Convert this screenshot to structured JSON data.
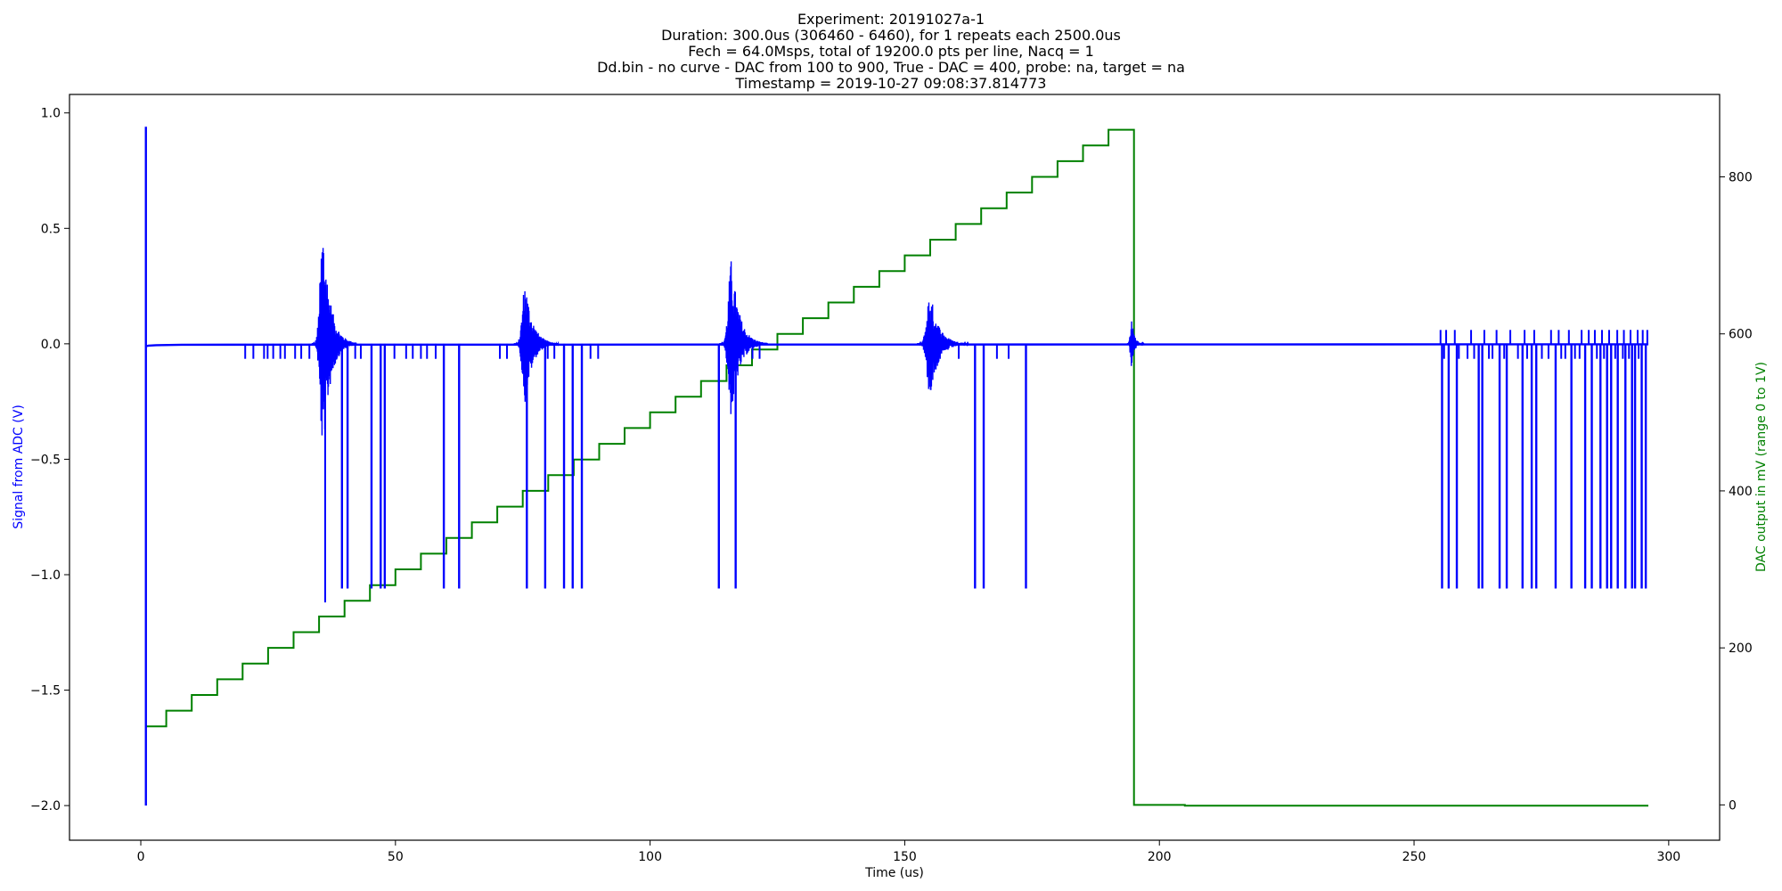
{
  "chart_data": {
    "type": "line",
    "title_lines": [
      "Experiment: 20191027a-1",
      "Duration: 300.0us (306460 - 6460), for 1 repeats each 2500.0us",
      "Fech = 64.0Msps, total of 19200.0 pts per line, Nacq = 1",
      "Dd.bin - no curve - DAC from 100 to 900, True - DAC = 400, probe: na, target = na",
      "Timestamp = 2019-10-27 09:08:37.814773"
    ],
    "xlabel": "Time (us)",
    "ylabel_left": "Signal from ADC (V)",
    "ylabel_right": "DAC output in mV (range 0 to 1V)",
    "xlim": [
      -14,
      310
    ],
    "ylim_left": [
      -2.15,
      1.08
    ],
    "ylim_right": [
      -45,
      905
    ],
    "x_ticks": [
      0,
      50,
      100,
      150,
      200,
      250,
      300
    ],
    "x_tick_labels": [
      "0",
      "50",
      "100",
      "150",
      "200",
      "250",
      "300"
    ],
    "y_left_ticks": [
      1.0,
      0.5,
      0.0,
      -0.5,
      -1.0,
      -1.5,
      -2.0
    ],
    "y_left_tick_labels": [
      "1.0",
      "0.5",
      "0.0",
      "−0.5",
      "−1.0",
      "−1.5",
      "−2.0"
    ],
    "y_right_ticks": [
      800,
      600,
      400,
      200,
      0
    ],
    "y_right_tick_labels": [
      "800",
      "600",
      "400",
      "200",
      "0"
    ],
    "grid": false,
    "colors": {
      "signal": "#0000ff",
      "dac": "#008000",
      "left_axis_label": "#0000ff",
      "right_axis_label": "#008000"
    },
    "series": [
      {
        "axis": "left",
        "baseline": {
          "x": [
            1.2,
            1.5,
            3,
            8,
            296
          ],
          "y": [
            -0.01,
            -0.008,
            -0.006,
            -0.004,
            -0.002
          ]
        },
        "initial_spike": {
          "x": 1.0,
          "y_max": 0.94,
          "y_min": -2.0
        },
        "echo_bursts": [
          {
            "center": 35.8,
            "half_width": 6.5,
            "peak": 0.52,
            "trough": -0.48,
            "extreme_min": -1.12
          },
          {
            "center": 75.5,
            "half_width": 6.5,
            "peak": 0.28,
            "trough": -0.26
          },
          {
            "center": 116.0,
            "half_width": 7.0,
            "peak": 0.37,
            "trough": -0.32
          },
          {
            "center": 155.0,
            "half_width": 7.5,
            "peak": 0.23,
            "trough": -0.23
          },
          {
            "center": 194.5,
            "half_width": 2.5,
            "peak": 0.12,
            "trough": -0.1
          }
        ],
        "deep_dips": {
          "y": -1.06,
          "x": [
            39.5,
            40.6,
            45.3,
            47.1,
            47.9,
            59.5,
            62.5,
            75.8,
            79.4,
            83.1,
            84.8,
            86.6,
            113.5,
            116.8,
            163.8,
            165.5,
            173.8,
            255.5,
            256.8,
            258.4,
            262.7,
            263.4,
            266.8,
            268.2,
            271.3,
            273.1,
            274.0,
            277.8,
            280.9,
            283.6,
            284.9,
            286.6,
            287.9,
            288.7,
            290.0,
            291.5,
            292.8,
            293.4,
            294.7,
            295.5
          ]
        },
        "small_dips": {
          "y": -0.065,
          "x": [
            20.5,
            22.1,
            24.2,
            24.9,
            26.0,
            27.4,
            28.3,
            30.3,
            31.5,
            33.1,
            42.1,
            43.2,
            49.8,
            52.1,
            53.4,
            55.0,
            56.2,
            57.9,
            70.5,
            71.9,
            79.9,
            81.2,
            88.3,
            89.8,
            120.1,
            121.5,
            160.6,
            168.1,
            170.4,
            255.9,
            258.8,
            260.5,
            261.8,
            264.7,
            265.4,
            267.7,
            270.4,
            272.2,
            275.1,
            276.4,
            278.9,
            279.7,
            281.6,
            282.5,
            285.9,
            287.3,
            289.5,
            291.0,
            292.2,
            294.1
          ]
        },
        "positive_spikes": {
          "y": 0.06,
          "x": [
            255.2,
            256.3,
            258.0,
            261.2,
            263.8,
            266.2,
            268.9,
            271.7,
            273.6,
            276.9,
            278.4,
            280.4,
            282.9,
            284.3,
            285.5,
            286.9,
            288.3,
            289.9,
            291.2,
            292.5,
            293.9,
            294.9,
            295.8
          ]
        }
      },
      {
        "axis": "right",
        "name": "",
        "step_x": [
          1,
          5,
          10,
          15,
          20,
          25,
          30,
          35,
          40,
          45,
          50,
          55,
          60,
          65,
          70,
          75,
          80,
          85,
          90,
          95,
          100,
          105,
          110,
          115,
          120,
          125,
          130,
          135,
          140,
          145,
          150,
          155,
          160,
          165,
          170,
          175,
          180,
          185,
          190,
          195
        ],
        "step_y": [
          100,
          120,
          140,
          160,
          180,
          200,
          220,
          240,
          260,
          280,
          300,
          320,
          340,
          360,
          380,
          400,
          420,
          440,
          460,
          480,
          500,
          520,
          540,
          560,
          580,
          600,
          620,
          640,
          660,
          680,
          700,
          720,
          740,
          760,
          780,
          800,
          820,
          840,
          860,
          0
        ],
        "tail": {
          "x": [
            195,
            205,
            205,
            296
          ],
          "y": [
            0,
            0,
            -1,
            -1
          ]
        }
      }
    ]
  }
}
